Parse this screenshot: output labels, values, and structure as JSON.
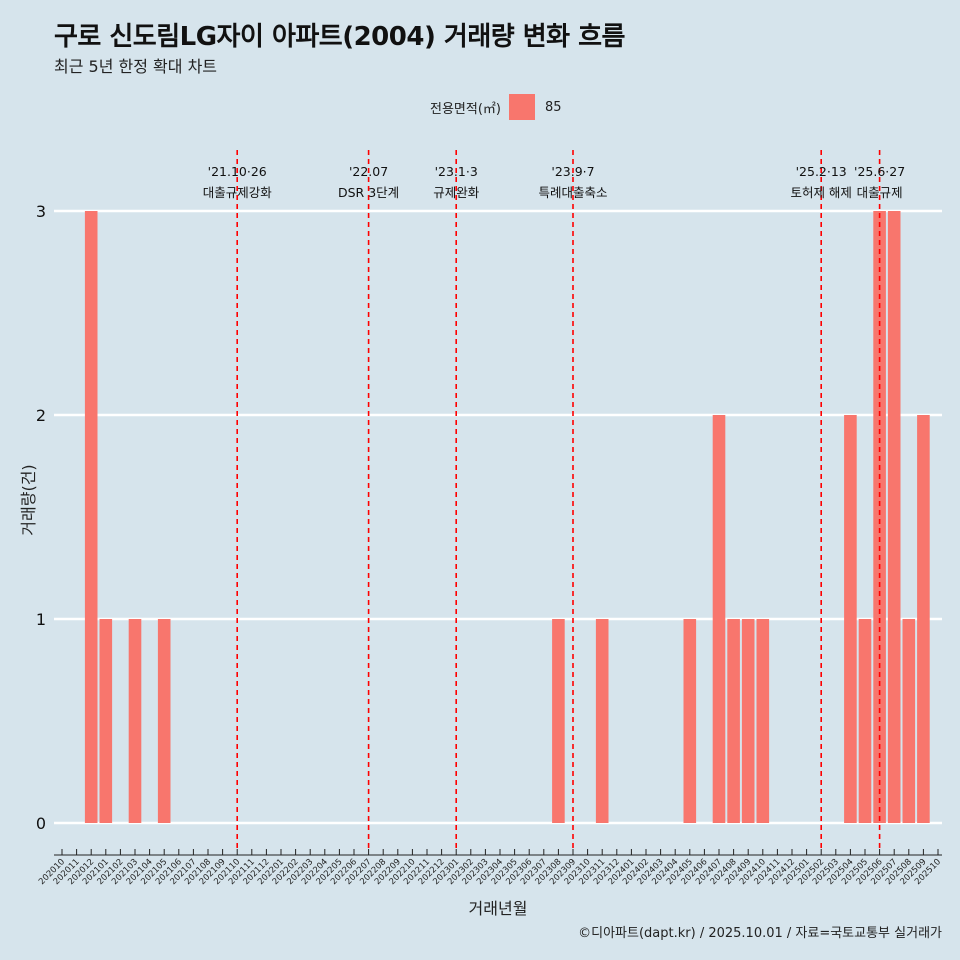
{
  "header": {
    "title": "구로 신도림LG자이 아파트(2004) 거래량 변화 흐름",
    "subtitle": "최근 5년 한정 확대 차트",
    "caption": "©디아파트(dapt.kr) / 2025.10.01 / 자료=국토교통부 실거래가"
  },
  "legend": {
    "title": "전용면적(㎡)",
    "item": "85",
    "color": "#f8766d"
  },
  "chart_data": {
    "type": "bar",
    "title": "구로 신도림LG자이 아파트(2004) 거래량 변화 흐름",
    "subtitle": "최근 5년 한정 확대 차트",
    "xlabel": "거래년월",
    "ylabel": "거래량(건)",
    "ylim": [
      0,
      3
    ],
    "yticks": [
      0,
      1,
      2,
      3
    ],
    "grid": true,
    "legend_position": "top",
    "bar_color": "#f8766d",
    "categories": [
      "202010",
      "202011",
      "202012",
      "202101",
      "202102",
      "202103",
      "202104",
      "202105",
      "202106",
      "202107",
      "202108",
      "202109",
      "202110",
      "202111",
      "202112",
      "202201",
      "202202",
      "202203",
      "202204",
      "202205",
      "202206",
      "202207",
      "202208",
      "202209",
      "202210",
      "202211",
      "202212",
      "202301",
      "202302",
      "202303",
      "202304",
      "202305",
      "202306",
      "202307",
      "202308",
      "202309",
      "202310",
      "202311",
      "202312",
      "202401",
      "202402",
      "202403",
      "202404",
      "202405",
      "202406",
      "202407",
      "202408",
      "202409",
      "202410",
      "202411",
      "202412",
      "202501",
      "202502",
      "202503",
      "202504",
      "202505",
      "202506",
      "202507",
      "202508",
      "202509",
      "202510"
    ],
    "series": [
      {
        "name": "85",
        "values": [
          0,
          0,
          3,
          1,
          0,
          1,
          0,
          1,
          0,
          0,
          0,
          0,
          0,
          0,
          0,
          0,
          0,
          0,
          0,
          0,
          0,
          0,
          0,
          0,
          0,
          0,
          0,
          0,
          0,
          0,
          0,
          0,
          0,
          0,
          1,
          0,
          0,
          1,
          0,
          0,
          0,
          0,
          0,
          1,
          0,
          2,
          1,
          1,
          1,
          0,
          0,
          0,
          0,
          0,
          2,
          1,
          3,
          3,
          1,
          2,
          0
        ]
      }
    ],
    "events": [
      {
        "x": "202110",
        "label1": "'21.10·26",
        "label2": "대출규제강화"
      },
      {
        "x": "202207",
        "label1": "'22.07",
        "label2": "DSR 3단계"
      },
      {
        "x": "202301",
        "label1": "'23.1·3",
        "label2": "규제완화"
      },
      {
        "x": "202309",
        "label1": "'23.9·7",
        "label2": "특례대출축소"
      },
      {
        "x": "202502",
        "label1": "'25.2·13",
        "label2": "토허제 해제"
      },
      {
        "x": "202506",
        "label1": "'25.6·27",
        "label2": "대출규제"
      }
    ]
  }
}
